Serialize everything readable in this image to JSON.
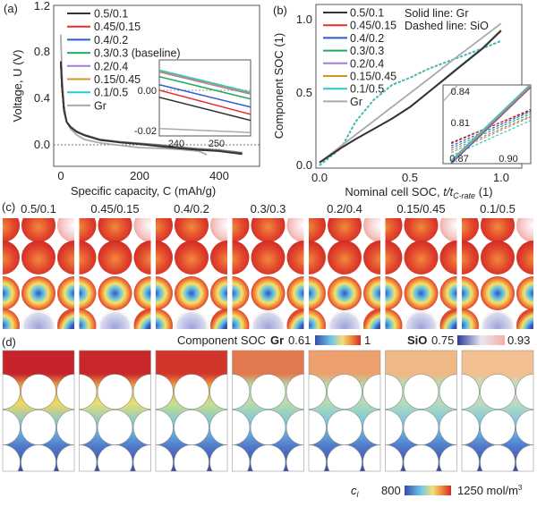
{
  "panels": {
    "a": "(a)",
    "b": "(b)",
    "c": "(c)",
    "d": "(d)"
  },
  "colors": {
    "0.5/0.1": "#333333",
    "0.45/0.15": "#ee2a2a",
    "0.4/0.2": "#2a5bd0",
    "0.3/0.3": "#22aa5a",
    "0.2/0.4": "#a878d8",
    "0.15/0.45": "#d4961c",
    "0.1/0.5": "#26cccc",
    "Gr": "#aaaaaa"
  },
  "chart_data": [
    {
      "type": "line",
      "panel": "a",
      "xlabel": "Specific capacity, C (mAh/g)",
      "ylabel": "Voltage, U (V)",
      "xlim": [
        -18,
        504
      ],
      "ylim": [
        -0.18,
        1.2
      ],
      "xticks": [
        "0",
        "200",
        "400"
      ],
      "yticks": [
        "0.0",
        "0.4",
        "0.8",
        "1.2"
      ],
      "reference_line": 0.0,
      "legend": [
        "0.5/0.1",
        "0.45/0.15",
        "0.4/0.2",
        "0.3/0.3 (baseline)",
        "0.2/0.4",
        "0.15/0.45",
        "0.1/0.5",
        "Gr"
      ],
      "legend_position": "top-left",
      "series": [
        {
          "name": "0.5/0.1",
          "x": [
            0,
            3,
            8,
            15,
            25,
            40,
            60,
            100,
            150,
            200,
            250,
            300,
            350,
            400,
            460
          ],
          "y": [
            0.72,
            0.5,
            0.3,
            0.2,
            0.155,
            0.115,
            0.085,
            0.045,
            0.025,
            0.01,
            -0.008,
            -0.025,
            -0.04,
            -0.05,
            -0.075
          ]
        },
        {
          "name": "0.45/0.15",
          "x": [
            0,
            3,
            8,
            15,
            25,
            40,
            60,
            100,
            150,
            200,
            250,
            300,
            350,
            400,
            460
          ],
          "y": [
            0.72,
            0.5,
            0.3,
            0.2,
            0.156,
            0.116,
            0.086,
            0.046,
            0.026,
            0.012,
            -0.005,
            -0.023,
            -0.038,
            -0.048,
            -0.072
          ]
        },
        {
          "name": "0.4/0.2",
          "x": [
            0,
            3,
            8,
            15,
            25,
            40,
            60,
            100,
            150,
            200,
            250,
            300,
            350,
            400,
            460
          ],
          "y": [
            0.72,
            0.5,
            0.3,
            0.2,
            0.157,
            0.117,
            0.087,
            0.047,
            0.027,
            0.013,
            -0.003,
            -0.021,
            -0.036,
            -0.046,
            -0.07
          ]
        },
        {
          "name": "0.3/0.3 (baseline)",
          "x": [
            0,
            3,
            8,
            15,
            25,
            40,
            60,
            100,
            150,
            200,
            250,
            300,
            350,
            400,
            460
          ],
          "y": [
            0.72,
            0.5,
            0.3,
            0.2,
            0.158,
            0.118,
            0.088,
            0.048,
            0.028,
            0.014,
            0.001,
            -0.018,
            -0.033,
            -0.043,
            -0.067
          ]
        },
        {
          "name": "0.2/0.4",
          "x": [
            0,
            3,
            8,
            15,
            25,
            40,
            60,
            100,
            150,
            200,
            250,
            300,
            350,
            400,
            460
          ],
          "y": [
            0.72,
            0.5,
            0.3,
            0.2,
            0.159,
            0.119,
            0.089,
            0.049,
            0.029,
            0.015,
            0.003,
            -0.016,
            -0.031,
            -0.041,
            -0.065
          ]
        },
        {
          "name": "0.15/0.45",
          "x": [
            0,
            3,
            8,
            15,
            25,
            40,
            60,
            100,
            150,
            200,
            250,
            300,
            350,
            400,
            460
          ],
          "y": [
            0.72,
            0.5,
            0.3,
            0.2,
            0.16,
            0.12,
            0.09,
            0.05,
            0.03,
            0.016,
            0.004,
            -0.015,
            -0.03,
            -0.04,
            -0.064
          ]
        },
        {
          "name": "0.1/0.5",
          "x": [
            0,
            3,
            8,
            15,
            25,
            40,
            60,
            100,
            150,
            200,
            250,
            300,
            350,
            400,
            460
          ],
          "y": [
            0.72,
            0.5,
            0.3,
            0.2,
            0.16,
            0.12,
            0.09,
            0.05,
            0.03,
            0.016,
            0.004,
            -0.015,
            -0.03,
            -0.04,
            -0.063
          ]
        },
        {
          "name": "Gr",
          "x": [
            0,
            3,
            8,
            15,
            25,
            40,
            60,
            100,
            150,
            200,
            250,
            300,
            350,
            370
          ],
          "y": [
            0.95,
            0.6,
            0.35,
            0.2,
            0.14,
            0.09,
            0.05,
            0.02,
            0.0,
            -0.02,
            -0.025,
            -0.035,
            -0.05,
            -0.08
          ]
        }
      ],
      "inset": {
        "xlim": [
          235.8,
          258.7
        ],
        "ylim": [
          -0.0227,
          0.015
        ],
        "xticks": [
          "240",
          "250"
        ],
        "yticks": [
          "0.00",
          "-0.02"
        ],
        "reference_line": 0.0,
        "series": [
          {
            "name": "0.5/0.1",
            "x": [
              235.8,
              258.7
            ],
            "y": [
              -0.0036,
              -0.015
            ]
          },
          {
            "name": "0.45/0.15",
            "x": [
              235.8,
              258.7
            ],
            "y": [
              0.0,
              -0.012
            ]
          },
          {
            "name": "0.4/0.2",
            "x": [
              235.8,
              258.7
            ],
            "y": [
              0.0027,
              -0.0084
            ]
          },
          {
            "name": "0.3/0.3 (baseline)",
            "x": [
              235.8,
              258.7
            ],
            "y": [
              0.0067,
              -0.0044
            ]
          },
          {
            "name": "0.2/0.4",
            "x": [
              235.8,
              258.7
            ],
            "y": [
              0.009,
              -0.002
            ]
          },
          {
            "name": "0.15/0.45",
            "x": [
              235.8,
              258.7
            ],
            "y": [
              0.0095,
              -0.0015
            ]
          },
          {
            "name": "0.1/0.5",
            "x": [
              235.8,
              258.7
            ],
            "y": [
              0.01,
              -0.001
            ]
          },
          {
            "name": "Gr",
            "x": [
              235.8,
              258.7
            ],
            "y": [
              -0.019,
              -0.021
            ]
          }
        ]
      }
    },
    {
      "type": "line",
      "panel": "b",
      "xlabel_main": "Nominal cell SOC, ",
      "xlabel_var": "t/t",
      "xlabel_sub": "C-rate",
      "xlabel_unit": " (1)",
      "ylabel": "Component SOC (1)",
      "xlim": [
        0,
        1.11
      ],
      "ylim": [
        0,
        1.1
      ],
      "xticks": [
        "0.0",
        "0.5",
        "1.0"
      ],
      "yticks": [
        "0.0",
        "0.5",
        "1.0"
      ],
      "legend": [
        "0.5/0.1",
        "0.45/0.15",
        "0.4/0.2",
        "0.3/0.3",
        "0.2/0.4",
        "0.15/0.45",
        "0.1/0.5",
        "Gr"
      ],
      "legend_position": "top-left",
      "annotations": [
        "Solid line: Gr",
        "Dashed line: SiO"
      ],
      "x": [
        0,
        0.12,
        0.2,
        0.3,
        0.4,
        0.5,
        0.6,
        0.75,
        0.9,
        1.0
      ],
      "series": [
        {
          "name": "0.5/0.1",
          "gr": [
            0.02,
            0.12,
            0.18,
            0.25,
            0.32,
            0.4,
            0.5,
            0.65,
            0.8,
            0.92
          ],
          "sio": [
            0,
            0.12,
            0.3,
            0.45,
            0.55,
            0.6,
            0.66,
            0.73,
            0.8,
            0.85
          ]
        },
        {
          "name": "0.45/0.15",
          "gr": [
            0.02,
            0.12,
            0.18,
            0.25,
            0.32,
            0.4,
            0.5,
            0.65,
            0.8,
            0.92
          ],
          "sio": [
            0,
            0.12,
            0.3,
            0.45,
            0.55,
            0.6,
            0.66,
            0.73,
            0.8,
            0.85
          ]
        },
        {
          "name": "0.4/0.2",
          "gr": [
            0.02,
            0.12,
            0.18,
            0.25,
            0.32,
            0.4,
            0.5,
            0.65,
            0.8,
            0.92
          ],
          "sio": [
            0,
            0.12,
            0.3,
            0.45,
            0.55,
            0.6,
            0.66,
            0.73,
            0.8,
            0.85
          ]
        },
        {
          "name": "0.3/0.3",
          "gr": [
            0.02,
            0.12,
            0.18,
            0.25,
            0.32,
            0.4,
            0.5,
            0.65,
            0.8,
            0.92
          ],
          "sio": [
            0,
            0.12,
            0.3,
            0.45,
            0.55,
            0.6,
            0.66,
            0.73,
            0.8,
            0.85
          ]
        },
        {
          "name": "0.2/0.4",
          "gr": [
            0.02,
            0.12,
            0.18,
            0.25,
            0.32,
            0.4,
            0.5,
            0.65,
            0.8,
            0.92
          ],
          "sio": [
            0,
            0.12,
            0.3,
            0.45,
            0.55,
            0.6,
            0.66,
            0.73,
            0.8,
            0.85
          ]
        },
        {
          "name": "0.15/0.45",
          "gr": [
            0.02,
            0.12,
            0.18,
            0.25,
            0.32,
            0.4,
            0.5,
            0.65,
            0.8,
            0.925
          ],
          "sio": [
            0,
            0.12,
            0.3,
            0.45,
            0.55,
            0.6,
            0.66,
            0.73,
            0.8,
            0.85
          ]
        },
        {
          "name": "0.1/0.5",
          "gr": [
            0.02,
            0.12,
            0.18,
            0.25,
            0.32,
            0.4,
            0.5,
            0.655,
            0.805,
            0.925
          ],
          "sio": [
            0,
            0.12,
            0.3,
            0.45,
            0.55,
            0.6,
            0.66,
            0.73,
            0.8,
            0.85
          ]
        },
        {
          "name": "Gr",
          "gr": [
            0.02,
            0.134,
            0.21,
            0.305,
            0.4,
            0.495,
            0.59,
            0.735,
            0.875,
            0.97
          ]
        }
      ],
      "inset": {
        "xlim": [
          0.86,
          0.9136
        ],
        "ylim": [
          0.773,
          0.844
        ],
        "xticks": [
          "0.87",
          "0.90"
        ],
        "yticks": [
          "0.84",
          "0.81"
        ],
        "series": [
          {
            "name": "0.5/0.1",
            "x": [
              0.865,
              0.9136
            ],
            "gr": [
              0.773,
              0.842
            ],
            "sio": [
              0.792,
              0.821
            ]
          },
          {
            "name": "0.45/0.15",
            "x": [
              0.865,
              0.9136
            ],
            "gr": [
              0.773,
              0.842
            ],
            "sio": [
              0.791,
              0.822
            ]
          },
          {
            "name": "0.4/0.2",
            "x": [
              0.865,
              0.9136
            ],
            "gr": [
              0.773,
              0.8425
            ],
            "sio": [
              0.789,
              0.82
            ]
          },
          {
            "name": "0.3/0.3",
            "x": [
              0.865,
              0.9136
            ],
            "gr": [
              0.774,
              0.843
            ],
            "sio": [
              0.787,
              0.818
            ]
          },
          {
            "name": "0.2/0.4",
            "x": [
              0.865,
              0.9136
            ],
            "gr": [
              0.774,
              0.843
            ],
            "sio": [
              0.785,
              0.816
            ]
          },
          {
            "name": "0.15/0.45",
            "x": [
              0.865,
              0.9136
            ],
            "gr": [
              0.775,
              0.844
            ],
            "sio": [
              0.783,
              0.815
            ]
          },
          {
            "name": "0.1/0.5",
            "x": [
              0.865,
              0.9136
            ],
            "gr": [
              0.776,
              0.845
            ],
            "sio": [
              0.78,
              0.812
            ]
          },
          {
            "name": "Gr",
            "x": [
              0.86,
              0.869
            ],
            "gr": [
              0.829,
              0.844
            ]
          }
        ]
      }
    }
  ],
  "panel_c": {
    "tiles": [
      "0.5/0.1",
      "0.45/0.15",
      "0.4/0.2",
      "0.3/0.3",
      "0.2/0.4",
      "0.15/0.45",
      "0.1/0.5"
    ],
    "colorbar_title": "Component SOC",
    "gr_label": "Gr",
    "gr_min": "0.61",
    "gr_max": "1",
    "sio_label": "SiO",
    "sio_min": "0.75",
    "sio_max": "0.93"
  },
  "panel_d": {
    "colorbar_symbol": "c",
    "colorbar_sub": "l",
    "min": "800",
    "max": "1250 mol/m",
    "max_sup": "3"
  }
}
